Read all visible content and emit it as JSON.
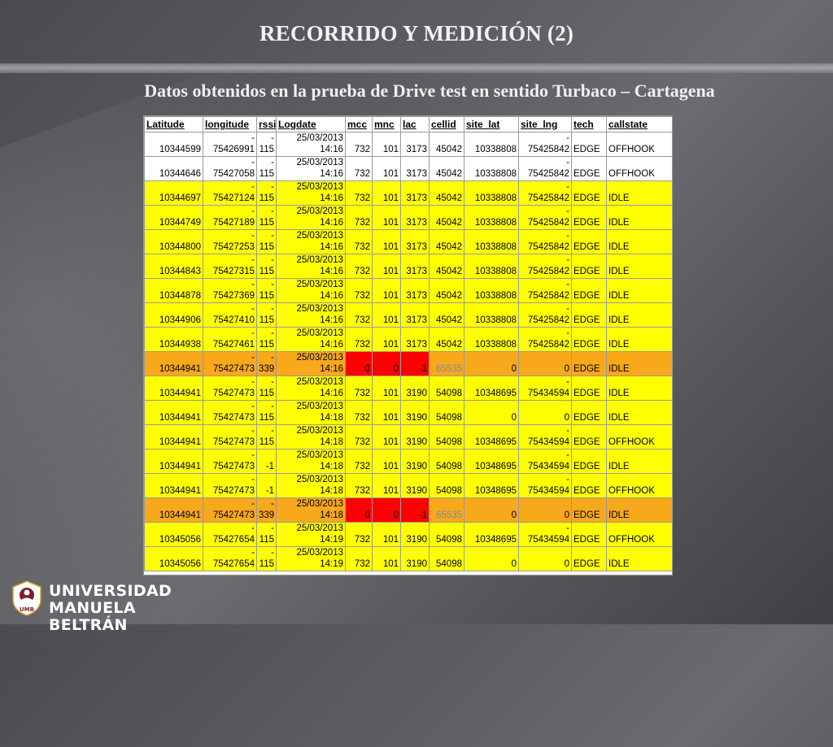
{
  "title": "RECORRIDO Y MEDICIÓN (2)",
  "subtitle": "Datos obtenidos en la prueba de Drive test en sentido Turbaco – Cartagena",
  "table": {
    "headers": [
      "Latitude",
      "longitude",
      "rssi",
      "Logdate",
      "mcc",
      "mnc",
      "lac",
      "cellid",
      "site_lat",
      "site_lng",
      "tech",
      "callstate"
    ],
    "rows": [
      {
        "style": "white",
        "lat": "10344599",
        "lng_sign": "-",
        "lng": "75426991",
        "rssi_sign": "-",
        "rssi": "115",
        "date": "25/03/2013",
        "time": "14:16",
        "mcc": "732",
        "mnc": "101",
        "lac": "3173",
        "cellid": "45042",
        "site_lat": "10338808",
        "site_lng_sign": "-",
        "site_lng": "75425842",
        "tech": "EDGE",
        "callstate": "OFFHOOK"
      },
      {
        "style": "white",
        "lat": "10344646",
        "lng_sign": "-",
        "lng": "75427058",
        "rssi_sign": "-",
        "rssi": "115",
        "date": "25/03/2013",
        "time": "14:16",
        "mcc": "732",
        "mnc": "101",
        "lac": "3173",
        "cellid": "45042",
        "site_lat": "10338808",
        "site_lng_sign": "-",
        "site_lng": "75425842",
        "tech": "EDGE",
        "callstate": "OFFHOOK"
      },
      {
        "style": "yellow",
        "lat": "10344697",
        "lng_sign": "-",
        "lng": "75427124",
        "rssi_sign": "-",
        "rssi": "115",
        "date": "25/03/2013",
        "time": "14:16",
        "mcc": "732",
        "mnc": "101",
        "lac": "3173",
        "cellid": "45042",
        "site_lat": "10338808",
        "site_lng_sign": "-",
        "site_lng": "75425842",
        "tech": "EDGE",
        "callstate": "IDLE"
      },
      {
        "style": "yellow",
        "lat": "10344749",
        "lng_sign": "-",
        "lng": "75427189",
        "rssi_sign": "-",
        "rssi": "115",
        "date": "25/03/2013",
        "time": "14:16",
        "mcc": "732",
        "mnc": "101",
        "lac": "3173",
        "cellid": "45042",
        "site_lat": "10338808",
        "site_lng_sign": "-",
        "site_lng": "75425842",
        "tech": "EDGE",
        "callstate": "IDLE"
      },
      {
        "style": "yellow",
        "lat": "10344800",
        "lng_sign": "-",
        "lng": "75427253",
        "rssi_sign": "-",
        "rssi": "115",
        "date": "25/03/2013",
        "time": "14:16",
        "mcc": "732",
        "mnc": "101",
        "lac": "3173",
        "cellid": "45042",
        "site_lat": "10338808",
        "site_lng_sign": "-",
        "site_lng": "75425842",
        "tech": "EDGE",
        "callstate": "IDLE"
      },
      {
        "style": "yellow",
        "lat": "10344843",
        "lng_sign": "-",
        "lng": "75427315",
        "rssi_sign": "-",
        "rssi": "115",
        "date": "25/03/2013",
        "time": "14:16",
        "mcc": "732",
        "mnc": "101",
        "lac": "3173",
        "cellid": "45042",
        "site_lat": "10338808",
        "site_lng_sign": "-",
        "site_lng": "75425842",
        "tech": "EDGE",
        "callstate": "IDLE"
      },
      {
        "style": "yellow",
        "lat": "10344878",
        "lng_sign": "-",
        "lng": "75427369",
        "rssi_sign": "-",
        "rssi": "115",
        "date": "25/03/2013",
        "time": "14:16",
        "mcc": "732",
        "mnc": "101",
        "lac": "3173",
        "cellid": "45042",
        "site_lat": "10338808",
        "site_lng_sign": "-",
        "site_lng": "75425842",
        "tech": "EDGE",
        "callstate": "IDLE"
      },
      {
        "style": "yellow",
        "lat": "10344906",
        "lng_sign": "-",
        "lng": "75427410",
        "rssi_sign": "-",
        "rssi": "115",
        "date": "25/03/2013",
        "time": "14:16",
        "mcc": "732",
        "mnc": "101",
        "lac": "3173",
        "cellid": "45042",
        "site_lat": "10338808",
        "site_lng_sign": "-",
        "site_lng": "75425842",
        "tech": "EDGE",
        "callstate": "IDLE"
      },
      {
        "style": "yellow",
        "lat": "10344938",
        "lng_sign": "-",
        "lng": "75427461",
        "rssi_sign": "-",
        "rssi": "115",
        "date": "25/03/2013",
        "time": "14:16",
        "mcc": "732",
        "mnc": "101",
        "lac": "3173",
        "cellid": "45042",
        "site_lat": "10338808",
        "site_lng_sign": "-",
        "site_lng": "75425842",
        "tech": "EDGE",
        "callstate": "IDLE"
      },
      {
        "style": "orange",
        "lat": "10344941",
        "lng_sign": "-",
        "lng": "75427473",
        "rssi_sign": "-",
        "rssi": "339",
        "date": "25/03/2013",
        "time": "14:16",
        "mcc": "0",
        "mnc": "0",
        "lac": "-1",
        "cellid": "65535",
        "site_lat": "0",
        "site_lng_sign": "",
        "site_lng": "0",
        "tech": "EDGE",
        "callstate": "IDLE",
        "error": true
      },
      {
        "style": "yellow",
        "lat": "10344941",
        "lng_sign": "-",
        "lng": "75427473",
        "rssi_sign": "-",
        "rssi": "115",
        "date": "25/03/2013",
        "time": "14:16",
        "mcc": "732",
        "mnc": "101",
        "lac": "3190",
        "cellid": "54098",
        "site_lat": "10348695",
        "site_lng_sign": "-",
        "site_lng": "75434594",
        "tech": "EDGE",
        "callstate": "IDLE"
      },
      {
        "style": "yellow",
        "lat": "10344941",
        "lng_sign": "-",
        "lng": "75427473",
        "rssi_sign": "-",
        "rssi": "115",
        "date": "25/03/2013",
        "time": "14:18",
        "mcc": "732",
        "mnc": "101",
        "lac": "3190",
        "cellid": "54098",
        "site_lat": "0",
        "site_lng_sign": "",
        "site_lng": "0",
        "tech": "EDGE",
        "callstate": "IDLE"
      },
      {
        "style": "yellow",
        "lat": "10344941",
        "lng_sign": "-",
        "lng": "75427473",
        "rssi_sign": "-",
        "rssi": "115",
        "date": "25/03/2013",
        "time": "14:18",
        "mcc": "732",
        "mnc": "101",
        "lac": "3190",
        "cellid": "54098",
        "site_lat": "10348695",
        "site_lng_sign": "-",
        "site_lng": "75434594",
        "tech": "EDGE",
        "callstate": "OFFHOOK"
      },
      {
        "style": "yellow",
        "lat": "10344941",
        "lng_sign": "-",
        "lng": "75427473",
        "rssi_sign": "",
        "rssi": "-1",
        "date": "25/03/2013",
        "time": "14:18",
        "mcc": "732",
        "mnc": "101",
        "lac": "3190",
        "cellid": "54098",
        "site_lat": "10348695",
        "site_lng_sign": "-",
        "site_lng": "75434594",
        "tech": "EDGE",
        "callstate": "IDLE"
      },
      {
        "style": "yellow",
        "lat": "10344941",
        "lng_sign": "-",
        "lng": "75427473",
        "rssi_sign": "",
        "rssi": "-1",
        "date": "25/03/2013",
        "time": "14:18",
        "mcc": "732",
        "mnc": "101",
        "lac": "3190",
        "cellid": "54098",
        "site_lat": "10348695",
        "site_lng_sign": "-",
        "site_lng": "75434594",
        "tech": "EDGE",
        "callstate": "OFFHOOK"
      },
      {
        "style": "orange",
        "lat": "10344941",
        "lng_sign": "-",
        "lng": "75427473",
        "rssi_sign": "-",
        "rssi": "339",
        "date": "25/03/2013",
        "time": "14:18",
        "mcc": "0",
        "mnc": "0",
        "lac": "-1",
        "cellid": "65535",
        "site_lat": "0",
        "site_lng_sign": "",
        "site_lng": "0",
        "tech": "EDGE",
        "callstate": "IDLE",
        "error": true
      },
      {
        "style": "yellow",
        "lat": "10345056",
        "lng_sign": "-",
        "lng": "75427654",
        "rssi_sign": "-",
        "rssi": "115",
        "date": "25/03/2013",
        "time": "14:19",
        "mcc": "732",
        "mnc": "101",
        "lac": "3190",
        "cellid": "54098",
        "site_lat": "10348695",
        "site_lng_sign": "-",
        "site_lng": "75434594",
        "tech": "EDGE",
        "callstate": "OFFHOOK"
      },
      {
        "style": "yellow",
        "lat": "10345056",
        "lng_sign": "-",
        "lng": "75427654",
        "rssi_sign": "-",
        "rssi": "115",
        "date": "25/03/2013",
        "time": "14:19",
        "mcc": "732",
        "mnc": "101",
        "lac": "3190",
        "cellid": "54098",
        "site_lat": "0",
        "site_lng_sign": "",
        "site_lng": "0",
        "tech": "EDGE",
        "callstate": "IDLE"
      }
    ]
  },
  "logo": {
    "line1": "UNIVERSIDAD",
    "line2": "MANUELA BELTRÁN",
    "emblem_text": "UMB"
  },
  "colors": {
    "white_row": "#ffffff",
    "yellow_row": "#ffff00",
    "orange_row": "#f7a81b",
    "error_cell": "#ff0000",
    "grey_text": "#7d8ba3"
  }
}
